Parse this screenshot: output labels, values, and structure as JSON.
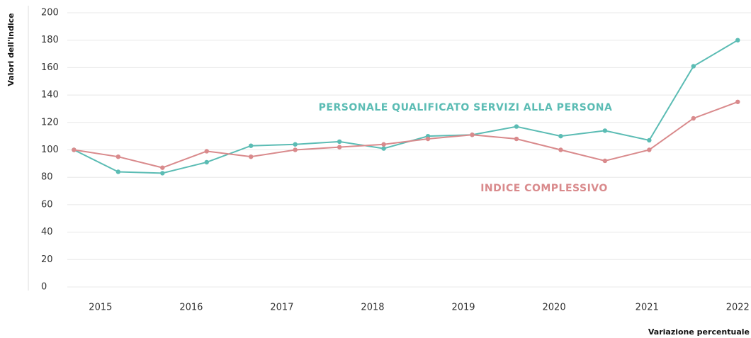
{
  "chart_data": {
    "type": "line",
    "y_label": "Valori dell'indice",
    "x_label": "Variazione percentuale",
    "x": [
      0,
      1,
      2,
      3,
      4,
      5,
      6,
      7,
      8,
      9,
      10,
      11,
      12,
      13,
      14,
      15
    ],
    "xlim": [
      -0.15,
      15.3
    ],
    "xticks": [
      {
        "value": 0.6,
        "label": "2015"
      },
      {
        "value": 2.65,
        "label": "2016"
      },
      {
        "value": 4.7,
        "label": "2017"
      },
      {
        "value": 6.75,
        "label": "2018"
      },
      {
        "value": 8.8,
        "label": "2019"
      },
      {
        "value": 10.85,
        "label": "2020"
      },
      {
        "value": 12.95,
        "label": "2021"
      },
      {
        "value": 15,
        "label": "2022"
      }
    ],
    "ylim": [
      0,
      200
    ],
    "yticks": [
      0,
      20,
      40,
      60,
      80,
      100,
      120,
      140,
      160,
      180,
      200
    ],
    "grid": true,
    "series": [
      {
        "name": "PERSONALE QUALIFICATO SERVIZI ALLA PERSONA",
        "color": "#5bbcb4",
        "values": [
          100,
          84,
          83,
          91,
          103,
          104,
          106,
          101,
          110,
          111,
          117,
          110,
          114,
          107,
          161,
          180
        ]
      },
      {
        "name": "INDICE COMPLESSIVO",
        "color": "#d98a8c",
        "values": [
          100,
          95,
          87,
          99,
          95,
          100,
          102,
          104,
          108,
          111,
          108,
          100,
          92,
          100,
          123,
          135
        ]
      }
    ]
  }
}
